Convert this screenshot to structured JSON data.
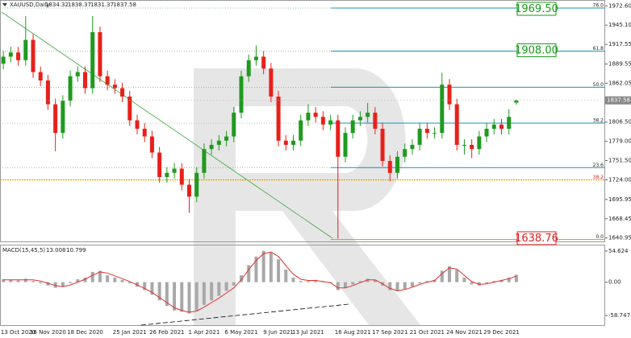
{
  "chart_data": {
    "type": "candlestick",
    "title": "XAUUSD,Daily",
    "categories": [
      null,
      null,
      "13 Oct 2020",
      null,
      null,
      null,
      "16 Nov 2020",
      null,
      null,
      null,
      null,
      "18 Dec 2020",
      null,
      null,
      null,
      null,
      null,
      "25 Jan 2021",
      null,
      null,
      null,
      null,
      "26 Feb 2021",
      null,
      null,
      null,
      null,
      "1 Apr 2021",
      null,
      null,
      null,
      null,
      "6 May 2021",
      null,
      null,
      null,
      null,
      "9 Jun 2021",
      null,
      null,
      null,
      "13 Jul 2021",
      null,
      null,
      null,
      null,
      null,
      "16 Aug 2021",
      null,
      null,
      null,
      null,
      "17 Sep 2021",
      null,
      null,
      null,
      null,
      "21 Oct 2021",
      null,
      null,
      null,
      null,
      "24 Nov 2021",
      null,
      null,
      null,
      null,
      "29 Dec 2021",
      null,
      null
    ],
    "open": [
      1890,
      1900,
      1906,
      1895,
      1924,
      1878,
      1866,
      1832,
      1791,
      1837,
      1872,
      1878,
      1855,
      1935,
      1872,
      1860,
      1855,
      1843,
      1809,
      1797,
      1786,
      1763,
      1728,
      1734,
      1740,
      1717,
      1700,
      1734,
      1768,
      1774,
      1780,
      1786,
      1820,
      1872,
      1895,
      1900,
      1883,
      1843,
      1780,
      1774,
      1780,
      1809,
      1820,
      1814,
      1803,
      1809,
      1757,
      1791,
      1809,
      1814,
      1820,
      1797,
      1751,
      1734,
      1757,
      1768,
      1774,
      1797,
      1791,
      1791,
      1860,
      1832,
      1774,
      1774,
      1768,
      1786,
      1797,
      1803,
      1797,
      1834.32
    ],
    "high": [
      1908,
      1914,
      1914,
      1958,
      1932,
      1886,
      1874,
      1840,
      1845,
      1880,
      1886,
      1886,
      1958,
      1943,
      1880,
      1868,
      1863,
      1851,
      1817,
      1805,
      1794,
      1771,
      1742,
      1748,
      1748,
      1725,
      1742,
      1776,
      1782,
      1788,
      1794,
      1828,
      1880,
      1903,
      1916,
      1908,
      1891,
      1851,
      1788,
      1788,
      1817,
      1832,
      1828,
      1822,
      1817,
      1817,
      1799,
      1817,
      1822,
      1834,
      1828,
      1805,
      1759,
      1765,
      1776,
      1782,
      1805,
      1805,
      1799,
      1877,
      1868,
      1840,
      1782,
      1782,
      1794,
      1805,
      1811,
      1811,
      1825,
      1838.37
    ],
    "low": [
      1882,
      1892,
      1887,
      1887,
      1870,
      1858,
      1824,
      1765,
      1783,
      1829,
      1864,
      1847,
      1847,
      1864,
      1852,
      1847,
      1835,
      1801,
      1789,
      1778,
      1755,
      1720,
      1720,
      1726,
      1709,
      1677,
      1692,
      1726,
      1760,
      1766,
      1772,
      1778,
      1812,
      1864,
      1887,
      1875,
      1835,
      1772,
      1766,
      1766,
      1772,
      1801,
      1806,
      1795,
      1795,
      1640,
      1749,
      1783,
      1801,
      1806,
      1789,
      1743,
      1722,
      1726,
      1749,
      1760,
      1766,
      1783,
      1783,
      1783,
      1824,
      1766,
      1760,
      1755,
      1760,
      1778,
      1789,
      1789,
      1789,
      1831.37
    ],
    "close": [
      1900,
      1906,
      1895,
      1924,
      1878,
      1866,
      1832,
      1791,
      1837,
      1872,
      1878,
      1855,
      1935,
      1872,
      1860,
      1855,
      1843,
      1809,
      1797,
      1786,
      1763,
      1728,
      1734,
      1740,
      1717,
      1700,
      1734,
      1768,
      1774,
      1780,
      1786,
      1820,
      1872,
      1895,
      1900,
      1883,
      1843,
      1780,
      1774,
      1780,
      1809,
      1820,
      1814,
      1803,
      1809,
      1757,
      1791,
      1809,
      1814,
      1820,
      1797,
      1751,
      1734,
      1757,
      1768,
      1774,
      1797,
      1791,
      1791,
      1860,
      1832,
      1774,
      1774,
      1768,
      1786,
      1797,
      1803,
      1797,
      1814,
      1837.58
    ],
    "up_color": "#1f9a1f",
    "down_color": "#e8201a",
    "ylim": [
      1636,
      1981
    ],
    "yticks": [
      {
        "value": 1972.6,
        "label": "1972.60"
      },
      {
        "value": 1945.1,
        "label": "1945.10"
      },
      1917.55,
      1889.55,
      1862.05,
      {
        "value": 1806.5,
        "label": "1806.50"
      },
      {
        "value": 1779,
        "label": "1779.00"
      },
      {
        "value": 1751.5,
        "label": "1751.50"
      },
      {
        "value": 1724,
        "label": "1724.00"
      },
      1695.95,
      1668.45,
      1640.95
    ],
    "levels": [
      {
        "ratio": "76.0",
        "price": 1969.5,
        "price_label": "1969.50",
        "box_color": "#1a9a1a"
      },
      {
        "ratio": "61.8",
        "price": 1908,
        "price_label": "1908.00",
        "box_color": "#1a9a1a"
      },
      {
        "ratio": "50.0",
        "price": 1856.4
      },
      {
        "ratio": "38.2",
        "price": 1805
      },
      {
        "ratio": "23.6",
        "price": 1741.5
      },
      {
        "ratio": "0.0",
        "price": 1638.76,
        "price_label": "1638.76",
        "box_color": "#e02020"
      }
    ],
    "level_color": "#1a8fb8",
    "support": {
      "ratio": "38.2",
      "price": 1724,
      "color": "#f0a000"
    },
    "macd": {
      "title": "MACD(15,45,5)",
      "histogram": [
        5,
        4,
        3,
        6,
        2,
        -2,
        -6,
        -10,
        -8,
        -2,
        5,
        8,
        18,
        20,
        12,
        8,
        4,
        -2,
        -8,
        -14,
        -22,
        -32,
        -42,
        -50,
        -52,
        -55,
        -50,
        -40,
        -32,
        -24,
        -15,
        -6,
        12,
        30,
        45,
        55,
        52,
        40,
        22,
        8,
        2,
        2,
        4,
        0,
        -2,
        -14,
        -10,
        -4,
        2,
        6,
        4,
        -6,
        -14,
        -16,
        -12,
        -8,
        -2,
        2,
        4,
        20,
        28,
        22,
        8,
        -4,
        -6,
        -2,
        2,
        4,
        8,
        13.008
      ],
      "signal": [
        4,
        4,
        4,
        4,
        4,
        2,
        -2,
        -6,
        -8,
        -5,
        0,
        5,
        12,
        18,
        16,
        11,
        6,
        1,
        -5,
        -11,
        -18,
        -27,
        -36,
        -45,
        -50,
        -53,
        -51,
        -44,
        -36,
        -28,
        -19,
        -10,
        4,
        22,
        38,
        50,
        53,
        45,
        29,
        14,
        5,
        3,
        3,
        1,
        -1,
        -10,
        -10,
        -6,
        -1,
        4,
        4,
        -3,
        -11,
        -15,
        -13,
        -9,
        -4,
        0,
        3,
        15,
        25,
        23,
        12,
        1,
        -4,
        -3,
        0,
        3,
        6,
        10.799
      ],
      "histogram_color": "#a8a8a8",
      "signal_color": "#e03030",
      "ylim": [
        -77,
        64.5
      ],
      "yticks": [
        54.624,
        {
          "value": 0,
          "label": "0.00"
        },
        -58.747
      ]
    }
  }
}
